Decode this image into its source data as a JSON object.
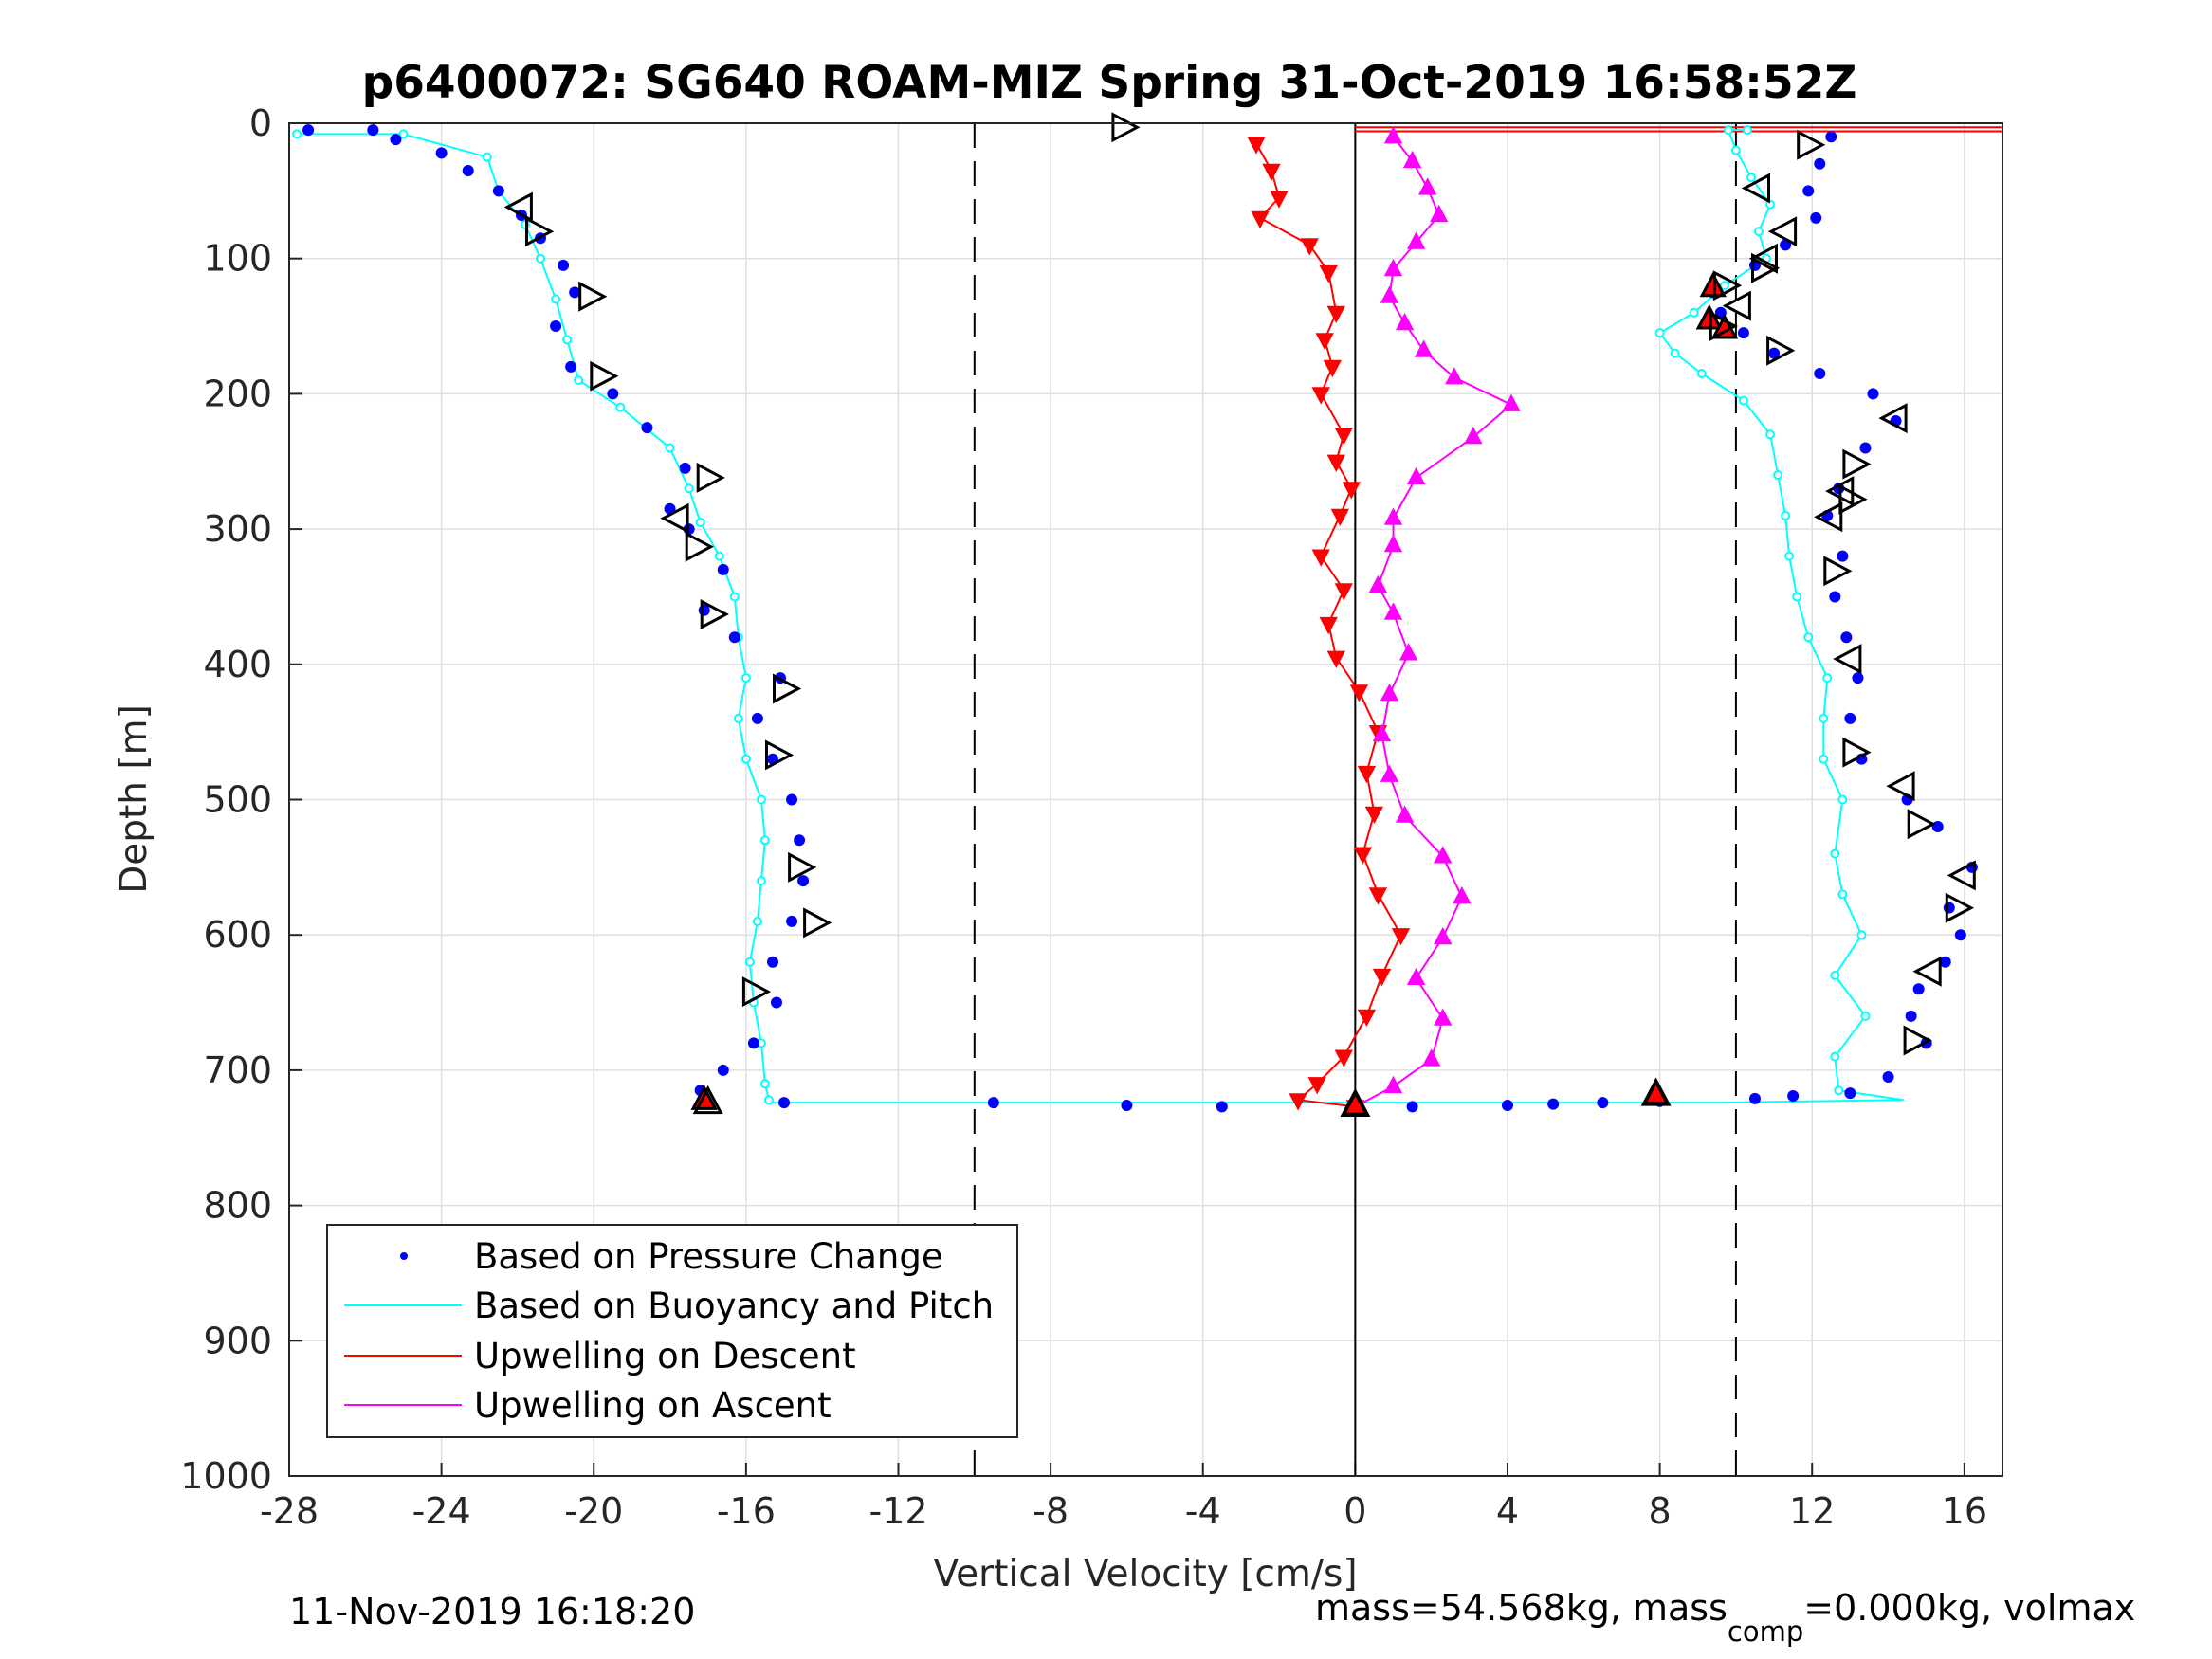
{
  "chart_data": {
    "type": "scatter",
    "title": "p6400072: SG640 ROAM-MIZ Spring 31-Oct-2019 16:58:52Z",
    "xlabel": "Vertical Velocity [cm/s]",
    "ylabel": "Depth [m]",
    "xlim": [
      -28,
      17
    ],
    "ylim": [
      0,
      1000
    ],
    "y_reversed": true,
    "grid": true,
    "xticks": [
      "-28",
      "-24",
      "-20",
      "-16",
      "-12",
      "-8",
      "-4",
      "0",
      "4",
      "8",
      "12",
      "16"
    ],
    "yticks": [
      "0",
      "100",
      "200",
      "300",
      "400",
      "500",
      "600",
      "700",
      "800",
      "900",
      "1000"
    ],
    "reference_lines": {
      "dashed_x": [
        -10,
        10
      ],
      "solid_x": [
        0
      ]
    },
    "legend_placement": "bottom-left",
    "colors": {
      "pressure": "#0000ff",
      "buoyancy": "#00ffff",
      "up_descent": "#ff0000",
      "up_ascent": "#ff00ff",
      "grid": "#dfdfdf",
      "marker_edge": "#000000"
    },
    "series": [
      {
        "name": "Based on Pressure Change",
        "marker": "dot",
        "descent": [
          [
            -27.5,
            5
          ],
          [
            -25.8,
            5
          ],
          [
            -25.2,
            12
          ],
          [
            -24.0,
            22
          ],
          [
            -23.3,
            35
          ],
          [
            -22.5,
            50
          ],
          [
            -21.9,
            68
          ],
          [
            -21.4,
            85
          ],
          [
            -20.8,
            105
          ],
          [
            -20.5,
            125
          ],
          [
            -21.0,
            150
          ],
          [
            -20.6,
            180
          ],
          [
            -19.5,
            200
          ],
          [
            -18.6,
            225
          ],
          [
            -17.6,
            255
          ],
          [
            -18.0,
            285
          ],
          [
            -17.5,
            300
          ],
          [
            -16.6,
            330
          ],
          [
            -17.1,
            360
          ],
          [
            -16.3,
            380
          ],
          [
            -15.1,
            410
          ],
          [
            -15.7,
            440
          ],
          [
            -15.3,
            470
          ],
          [
            -14.8,
            500
          ],
          [
            -14.6,
            530
          ],
          [
            -14.5,
            560
          ],
          [
            -14.8,
            590
          ],
          [
            -15.3,
            620
          ],
          [
            -15.2,
            650
          ],
          [
            -15.8,
            680
          ],
          [
            -16.6,
            700
          ],
          [
            -17.2,
            715
          ]
        ],
        "bottom": [
          [
            -15.0,
            724
          ],
          [
            -9.5,
            724
          ],
          [
            -6.0,
            726
          ],
          [
            -3.5,
            727
          ],
          [
            1.5,
            727
          ],
          [
            4.0,
            726
          ],
          [
            5.2,
            725
          ],
          [
            6.5,
            724
          ],
          [
            8.0,
            723
          ],
          [
            10.5,
            721
          ],
          [
            11.5,
            719
          ],
          [
            13.0,
            717
          ]
        ],
        "ascent": [
          [
            14.0,
            705
          ],
          [
            15.0,
            680
          ],
          [
            14.6,
            660
          ],
          [
            14.8,
            640
          ],
          [
            15.5,
            620
          ],
          [
            15.9,
            600
          ],
          [
            15.6,
            580
          ],
          [
            16.2,
            550
          ],
          [
            15.3,
            520
          ],
          [
            14.5,
            500
          ],
          [
            13.3,
            470
          ],
          [
            13.0,
            440
          ],
          [
            13.2,
            410
          ],
          [
            12.9,
            380
          ],
          [
            12.6,
            350
          ],
          [
            12.8,
            320
          ],
          [
            12.4,
            290
          ],
          [
            12.7,
            270
          ],
          [
            13.4,
            240
          ],
          [
            14.2,
            220
          ],
          [
            13.6,
            200
          ],
          [
            12.2,
            185
          ],
          [
            11.0,
            170
          ],
          [
            10.2,
            155
          ],
          [
            9.6,
            140
          ],
          [
            9.4,
            125
          ],
          [
            10.5,
            105
          ],
          [
            11.3,
            90
          ],
          [
            12.1,
            70
          ],
          [
            11.9,
            50
          ],
          [
            12.2,
            30
          ],
          [
            12.5,
            10
          ]
        ]
      },
      {
        "name": "Based on Buoyancy and Pitch",
        "marker": "circle",
        "descent": [
          [
            -27.8,
            8
          ],
          [
            -25.0,
            8
          ],
          [
            -22.8,
            25
          ],
          [
            -22.5,
            50
          ],
          [
            -21.8,
            75
          ],
          [
            -21.4,
            100
          ],
          [
            -21.0,
            130
          ],
          [
            -20.7,
            160
          ],
          [
            -20.4,
            190
          ],
          [
            -19.3,
            210
          ],
          [
            -18.0,
            240
          ],
          [
            -17.5,
            270
          ],
          [
            -17.2,
            295
          ],
          [
            -16.7,
            320
          ],
          [
            -16.3,
            350
          ],
          [
            -16.2,
            380
          ],
          [
            -16.0,
            410
          ],
          [
            -16.2,
            440
          ],
          [
            -16.0,
            470
          ],
          [
            -15.6,
            500
          ],
          [
            -15.5,
            530
          ],
          [
            -15.6,
            560
          ],
          [
            -15.7,
            590
          ],
          [
            -15.9,
            620
          ],
          [
            -15.8,
            650
          ],
          [
            -15.6,
            680
          ],
          [
            -15.5,
            710
          ],
          [
            -15.4,
            722
          ]
        ],
        "bottom": [
          [
            -15.4,
            724
          ],
          [
            9.6,
            724
          ],
          [
            14.4,
            722
          ]
        ],
        "ascent": [
          [
            12.7,
            715
          ],
          [
            12.6,
            690
          ],
          [
            13.4,
            660
          ],
          [
            12.6,
            630
          ],
          [
            13.3,
            600
          ],
          [
            12.8,
            570
          ],
          [
            12.6,
            540
          ],
          [
            12.8,
            500
          ],
          [
            12.3,
            470
          ],
          [
            12.3,
            440
          ],
          [
            12.4,
            410
          ],
          [
            11.9,
            380
          ],
          [
            11.6,
            350
          ],
          [
            11.4,
            320
          ],
          [
            11.3,
            290
          ],
          [
            11.1,
            260
          ],
          [
            10.9,
            230
          ],
          [
            10.2,
            205
          ],
          [
            9.1,
            185
          ],
          [
            8.4,
            170
          ],
          [
            8.0,
            155
          ],
          [
            8.9,
            140
          ],
          [
            9.7,
            120
          ],
          [
            10.8,
            100
          ],
          [
            10.6,
            80
          ],
          [
            10.9,
            60
          ],
          [
            10.4,
            40
          ],
          [
            10.0,
            20
          ],
          [
            9.8,
            5
          ],
          [
            10.3,
            5
          ]
        ]
      },
      {
        "name": "Upwelling on Descent",
        "marker": "triangle-down",
        "points": [
          [
            -2.6,
            15
          ],
          [
            -2.2,
            35
          ],
          [
            -2.0,
            55
          ],
          [
            -2.5,
            70
          ],
          [
            -1.2,
            90
          ],
          [
            -0.7,
            110
          ],
          [
            -0.5,
            140
          ],
          [
            -0.8,
            160
          ],
          [
            -0.6,
            180
          ],
          [
            -0.9,
            200
          ],
          [
            -0.3,
            230
          ],
          [
            -0.5,
            250
          ],
          [
            -0.1,
            270
          ],
          [
            -0.4,
            290
          ],
          [
            -0.9,
            320
          ],
          [
            -0.3,
            345
          ],
          [
            -0.7,
            370
          ],
          [
            -0.5,
            395
          ],
          [
            0.1,
            420
          ],
          [
            0.6,
            450
          ],
          [
            0.3,
            480
          ],
          [
            0.5,
            510
          ],
          [
            0.2,
            540
          ],
          [
            0.6,
            570
          ],
          [
            1.2,
            600
          ],
          [
            0.7,
            630
          ],
          [
            0.3,
            660
          ],
          [
            -0.3,
            690
          ],
          [
            -1.0,
            710
          ],
          [
            -1.5,
            722
          ],
          [
            0.0,
            727
          ]
        ]
      },
      {
        "name": "Upwelling on Ascent",
        "marker": "triangle-up",
        "points": [
          [
            0.0,
            727
          ],
          [
            1.0,
            712
          ],
          [
            2.0,
            692
          ],
          [
            2.3,
            662
          ],
          [
            1.6,
            632
          ],
          [
            2.3,
            602
          ],
          [
            2.8,
            572
          ],
          [
            2.3,
            542
          ],
          [
            1.3,
            512
          ],
          [
            0.9,
            482
          ],
          [
            0.7,
            452
          ],
          [
            0.9,
            422
          ],
          [
            1.4,
            392
          ],
          [
            1.0,
            362
          ],
          [
            0.6,
            342
          ],
          [
            1.0,
            312
          ],
          [
            1.0,
            292
          ],
          [
            1.6,
            262
          ],
          [
            3.1,
            232
          ],
          [
            4.1,
            208
          ],
          [
            2.6,
            188
          ],
          [
            1.8,
            168
          ],
          [
            1.3,
            148
          ],
          [
            0.9,
            128
          ],
          [
            1.0,
            108
          ],
          [
            1.6,
            88
          ],
          [
            2.2,
            68
          ],
          [
            1.9,
            48
          ],
          [
            1.5,
            28
          ],
          [
            1.0,
            10
          ]
        ]
      }
    ],
    "black_triangles": [
      {
        "x": -6.1,
        "y": 3,
        "dir": "right"
      },
      {
        "x": -21.9,
        "y": 62,
        "dir": "left"
      },
      {
        "x": -21.5,
        "y": 80,
        "dir": "right"
      },
      {
        "x": -20.1,
        "y": 128,
        "dir": "right"
      },
      {
        "x": -19.8,
        "y": 187,
        "dir": "right"
      },
      {
        "x": -17.0,
        "y": 262,
        "dir": "right"
      },
      {
        "x": -17.8,
        "y": 292,
        "dir": "left"
      },
      {
        "x": -17.3,
        "y": 313,
        "dir": "right"
      },
      {
        "x": -16.9,
        "y": 363,
        "dir": "right"
      },
      {
        "x": -15.0,
        "y": 418,
        "dir": "right"
      },
      {
        "x": -15.2,
        "y": 467,
        "dir": "right"
      },
      {
        "x": -14.6,
        "y": 550,
        "dir": "right"
      },
      {
        "x": -14.2,
        "y": 591,
        "dir": "right"
      },
      {
        "x": -15.8,
        "y": 642,
        "dir": "right"
      },
      {
        "x": 11.9,
        "y": 16,
        "dir": "right"
      },
      {
        "x": 10.6,
        "y": 48,
        "dir": "left"
      },
      {
        "x": 11.3,
        "y": 80,
        "dir": "left"
      },
      {
        "x": 10.8,
        "y": 100,
        "dir": "left"
      },
      {
        "x": 10.7,
        "y": 107,
        "dir": "right"
      },
      {
        "x": 9.7,
        "y": 120,
        "dir": "right"
      },
      {
        "x": 10.1,
        "y": 135,
        "dir": "left"
      },
      {
        "x": 9.6,
        "y": 150,
        "dir": "right"
      },
      {
        "x": 11.1,
        "y": 168,
        "dir": "right"
      },
      {
        "x": 14.2,
        "y": 218,
        "dir": "left"
      },
      {
        "x": 13.1,
        "y": 252,
        "dir": "right"
      },
      {
        "x": 12.8,
        "y": 272,
        "dir": "left"
      },
      {
        "x": 13.0,
        "y": 278,
        "dir": "right"
      },
      {
        "x": 12.5,
        "y": 291,
        "dir": "left"
      },
      {
        "x": 12.6,
        "y": 331,
        "dir": "right"
      },
      {
        "x": 13.0,
        "y": 396,
        "dir": "left"
      },
      {
        "x": 13.1,
        "y": 465,
        "dir": "right"
      },
      {
        "x": 14.4,
        "y": 490,
        "dir": "left"
      },
      {
        "x": 14.8,
        "y": 518,
        "dir": "right"
      },
      {
        "x": 16.0,
        "y": 556,
        "dir": "left"
      },
      {
        "x": 15.8,
        "y": 580,
        "dir": "right"
      },
      {
        "x": 15.1,
        "y": 627,
        "dir": "left"
      },
      {
        "x": 14.7,
        "y": 678,
        "dir": "right"
      },
      {
        "x": -17.0,
        "y": 724,
        "dir": "up"
      },
      {
        "x": 0.0,
        "y": 726,
        "dir": "up"
      },
      {
        "x": 7.9,
        "y": 718,
        "dir": "up"
      }
    ],
    "red_triangles": [
      {
        "x": 9.4,
        "y": 121
      },
      {
        "x": 9.3,
        "y": 145
      },
      {
        "x": 9.7,
        "y": 152
      },
      {
        "x": 7.9,
        "y": 718
      },
      {
        "x": -17.1,
        "y": 722
      },
      {
        "x": 0.0,
        "y": 726
      }
    ]
  },
  "footer": {
    "timestamp": "11-Nov-2019 16:18:20",
    "mass_part1": "mass=54.568kg, mass",
    "mass_sub": "comp",
    "mass_part2": "=0.000kg, volmax"
  }
}
